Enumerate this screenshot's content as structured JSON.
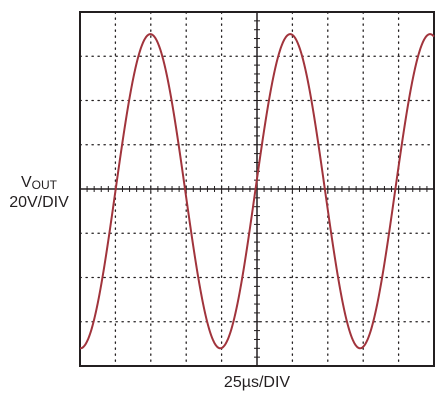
{
  "chart_data": {
    "type": "line",
    "ylabel_main": "V",
    "ylabel_sub": "OUT",
    "ylabel_scale": "20V/DIV",
    "xlabel": "25µs/DIV",
    "grid": true,
    "x_divisions": 10,
    "y_divisions": 8,
    "x_unit": "div",
    "y_unit": "div",
    "xlim": [
      0,
      10
    ],
    "ylim": [
      -4,
      4
    ],
    "series": [
      {
        "color": "#a1343c",
        "waveform": "sine",
        "amplitude_div": 3.55,
        "period_div": 3.95,
        "phase_div": 1.0,
        "offset_div": -0.05
      }
    ]
  }
}
